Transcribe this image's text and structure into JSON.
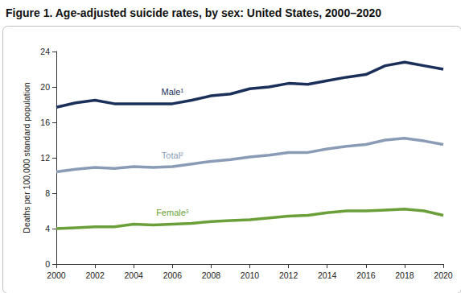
{
  "chart_data": {
    "type": "line",
    "title": "Figure 1. Age-adjusted suicide rates, by sex: United States, 2000–2020",
    "y_label": "Deaths per 100,000 standard population",
    "x": [
      2000,
      2001,
      2002,
      2003,
      2004,
      2005,
      2006,
      2007,
      2008,
      2009,
      2010,
      2011,
      2012,
      2013,
      2014,
      2015,
      2016,
      2017,
      2018,
      2019,
      2020
    ],
    "series": [
      {
        "name": "Male¹",
        "color": "#1b2f5b",
        "values": [
          17.7,
          18.2,
          18.5,
          18.1,
          18.1,
          18.1,
          18.1,
          18.5,
          19.0,
          19.2,
          19.8,
          20.0,
          20.4,
          20.3,
          20.7,
          21.1,
          21.4,
          22.4,
          22.8,
          22.4,
          22.0
        ]
      },
      {
        "name": "Total²",
        "color": "#8a9bb6",
        "values": [
          10.4,
          10.7,
          10.9,
          10.8,
          11.0,
          10.9,
          11.0,
          11.3,
          11.6,
          11.8,
          12.1,
          12.3,
          12.6,
          12.6,
          13.0,
          13.3,
          13.5,
          14.0,
          14.2,
          13.9,
          13.5
        ]
      },
      {
        "name": "Female³",
        "color": "#6a9f3a",
        "values": [
          4.0,
          4.1,
          4.2,
          4.2,
          4.5,
          4.4,
          4.5,
          4.6,
          4.8,
          4.9,
          5.0,
          5.2,
          5.4,
          5.5,
          5.8,
          6.0,
          6.0,
          6.1,
          6.2,
          6.0,
          5.5
        ]
      }
    ],
    "xlim": [
      2000,
      2020
    ],
    "xticks": [
      2000,
      2002,
      2004,
      2006,
      2008,
      2010,
      2012,
      2014,
      2016,
      2018,
      2020
    ],
    "ylim": [
      0,
      24
    ],
    "yticks": [
      0,
      4,
      8,
      12,
      16,
      20,
      24
    ],
    "grid": false
  }
}
